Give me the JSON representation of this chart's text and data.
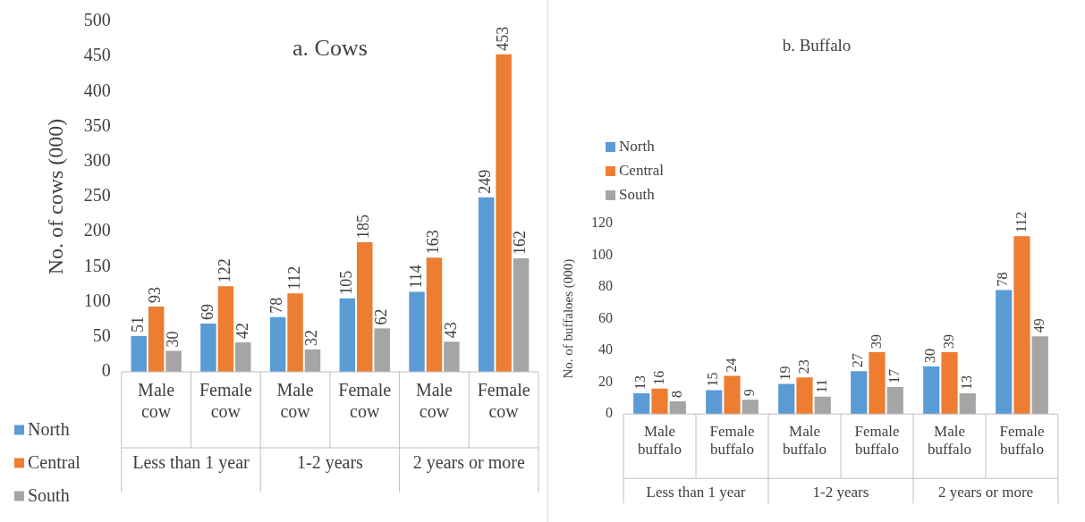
{
  "chart_data": [
    {
      "type": "bar",
      "title": "a. Cows",
      "ylabel": "No. of cows (000)",
      "categories": [
        "Male cow",
        "Female cow",
        "Male cow",
        "Female cow",
        "Male cow",
        "Female cow"
      ],
      "series": [
        {
          "name": "North",
          "color": "#5b9bd5",
          "values": [
            51,
            69,
            78,
            105,
            114,
            249
          ]
        },
        {
          "name": "Central",
          "color": "#ed7d31",
          "values": [
            93,
            122,
            112,
            185,
            163,
            453
          ]
        },
        {
          "name": "South",
          "color": "#a5a5a5",
          "values": [
            30,
            42,
            32,
            62,
            43,
            162
          ]
        }
      ],
      "ylim": [
        0,
        500
      ],
      "yticks": [
        0,
        50,
        100,
        150,
        200,
        250,
        300,
        350,
        400,
        450,
        500
      ],
      "grid": false,
      "legend": "bottom left",
      "data_labels": true,
      "annotations": [
        "Less than 1 year",
        "1-2 years",
        "2 years or more"
      ]
    },
    {
      "type": "bar",
      "title": "b. Buffalo",
      "ylabel": "No. of buffaloes (000)",
      "categories": [
        "Male buffalo",
        "Female buffalo",
        "Male buffalo",
        "Female buffalo",
        "Male buffalo",
        "Female buffalo"
      ],
      "series": [
        {
          "name": "North",
          "color": "#5b9bd5",
          "values": [
            13,
            15,
            19,
            27,
            30,
            78
          ]
        },
        {
          "name": "Central",
          "color": "#ed7d31",
          "values": [
            16,
            24,
            23,
            39,
            39,
            112
          ]
        },
        {
          "name": "South",
          "color": "#a5a5a5",
          "values": [
            8,
            9,
            11,
            17,
            13,
            49
          ]
        }
      ],
      "ylim": [
        0,
        120
      ],
      "yticks": [
        0,
        20,
        40,
        60,
        80,
        100,
        120
      ],
      "grid": false,
      "legend": "top left",
      "data_labels": true,
      "annotations": [
        "Less than 1 year",
        "1-2 years",
        "2 years or more"
      ]
    }
  ]
}
